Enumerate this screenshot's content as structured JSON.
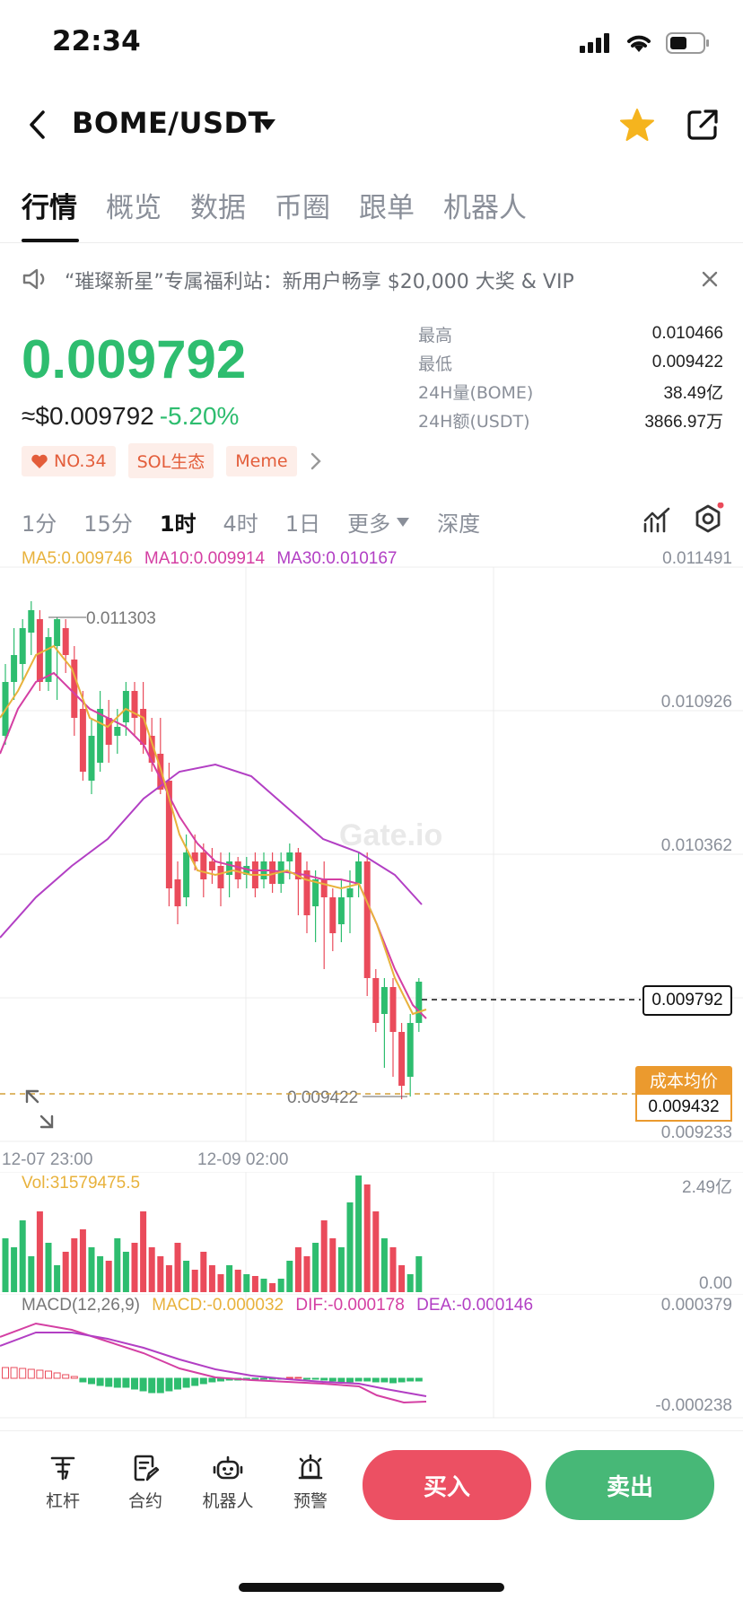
{
  "status_bar": {
    "time": "22:34"
  },
  "header": {
    "pair": "BOME/USDT",
    "icons": [
      "back-icon",
      "dropdown-icon",
      "star-icon",
      "share-icon"
    ]
  },
  "tabs": [
    {
      "label": "行情",
      "active": true
    },
    {
      "label": "概览"
    },
    {
      "label": "数据"
    },
    {
      "label": "币圈"
    },
    {
      "label": "跟单"
    },
    {
      "label": "机器人"
    }
  ],
  "banner": {
    "text": "“璀璨新星”专属福利站：新用户畅享 $20,000 大奖 & VIP"
  },
  "ticker": {
    "price": "0.009792",
    "usd_price": "≈$0.009792",
    "change": "-5.20%",
    "tags": [
      "NO.34",
      "SOL生态",
      "Meme"
    ]
  },
  "stats": [
    {
      "label": "最高",
      "value": "0.010466"
    },
    {
      "label": "最低",
      "value": "0.009422"
    },
    {
      "label": "24H量(BOME)",
      "value": "38.49亿"
    },
    {
      "label": "24H额(USDT)",
      "value": "3866.97万"
    }
  ],
  "intervals": {
    "i1": "1分",
    "i2": "15分",
    "i3": "1时",
    "i4": "4时",
    "i5": "1日",
    "more": "更多",
    "depth": "深度"
  },
  "indicators": {
    "ma5": "MA5:0.009746",
    "ma10": "MA10:0.009914",
    "ma30": "MA30:0.010167",
    "vol": "Vol:31579475.5",
    "macd_name": "MACD(12,26,9)",
    "macd": "MACD:-0.000032",
    "dif": "DIF:-0.000178",
    "dea": "DEA:-0.000146"
  },
  "chart_data": {
    "type": "candlestick",
    "y_axis": [
      "0.011491",
      "0.010926",
      "0.010362",
      "0.009233"
    ],
    "high_label": "0.011303",
    "low_label": "0.009422",
    "current_price": "0.009792",
    "cost_label": "成本均价",
    "cost_price": "0.009432",
    "x_labels": [
      "12-07 23:00",
      "12-09 02:00"
    ],
    "vol_axis": [
      "2.49亿",
      "0.00"
    ],
    "macd_axis": [
      "0.000379",
      "-0.000238"
    ],
    "watermark": "Gate.io",
    "colors": {
      "up": "#2ebd6f",
      "down": "#ea4b5b",
      "ma5": "#e8b23c",
      "ma10": "#d43fa3",
      "ma30": "#b23fc4"
    }
  },
  "bottom_nav": [
    {
      "label": "杠杆",
      "icon": "leverage-icon"
    },
    {
      "label": "合约",
      "icon": "contract-icon"
    },
    {
      "label": "机器人",
      "icon": "robot-icon"
    },
    {
      "label": "预警",
      "icon": "alert-icon"
    }
  ],
  "actions": {
    "buy": "买入",
    "sell": "卖出"
  }
}
